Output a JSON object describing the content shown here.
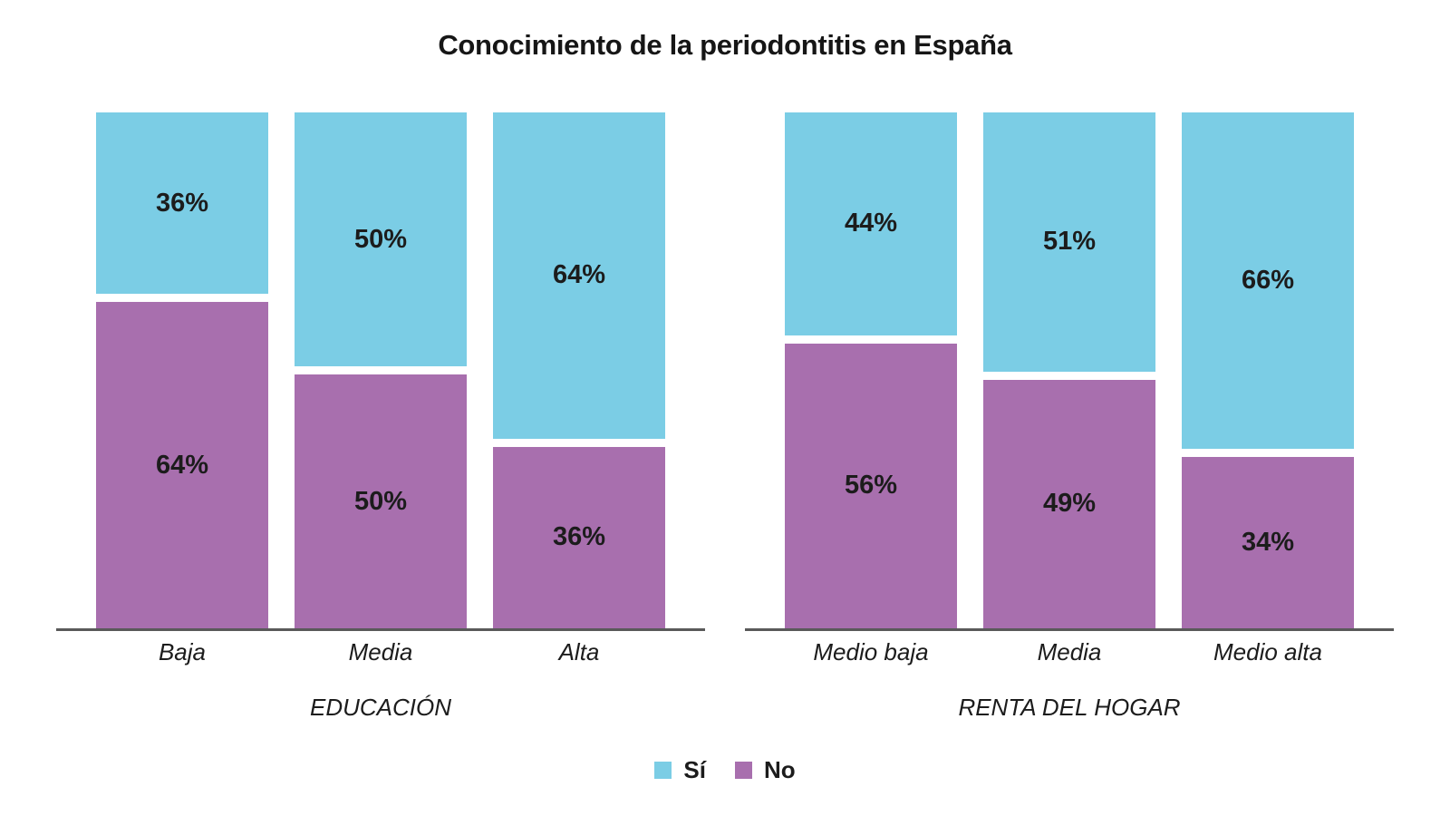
{
  "title": "Conocimiento de la periodontitis en España",
  "colors": {
    "si": "#7BCDE5",
    "no": "#A86FAE",
    "axis": "#595959",
    "label": "#1c1c1c",
    "background": "#ffffff"
  },
  "legend": {
    "items": [
      {
        "label": "Sí",
        "color": "#7BCDE5"
      },
      {
        "label": "No",
        "color": "#A86FAE"
      }
    ]
  },
  "chart_data": [
    {
      "type": "bar",
      "stacked": true,
      "value_format": "percent",
      "group_label": "EDUCACIÓN",
      "categories": [
        "Baja",
        "Media",
        "Alta"
      ],
      "series": [
        {
          "name": "Sí",
          "color": "#7BCDE5",
          "values": [
            36,
            50,
            64
          ]
        },
        {
          "name": "No",
          "color": "#A86FAE",
          "values": [
            64,
            50,
            36
          ]
        }
      ],
      "ylim": [
        0,
        100
      ],
      "grid": false,
      "legend_position": "bottom"
    },
    {
      "type": "bar",
      "stacked": true,
      "value_format": "percent",
      "group_label": "RENTA DEL HOGAR",
      "categories": [
        "Medio baja",
        "Media",
        "Medio alta"
      ],
      "series": [
        {
          "name": "Sí",
          "color": "#7BCDE5",
          "values": [
            44,
            51,
            66
          ]
        },
        {
          "name": "No",
          "color": "#A86FAE",
          "values": [
            56,
            49,
            34
          ]
        }
      ],
      "ylim": [
        0,
        100
      ],
      "grid": false,
      "legend_position": "bottom"
    }
  ]
}
